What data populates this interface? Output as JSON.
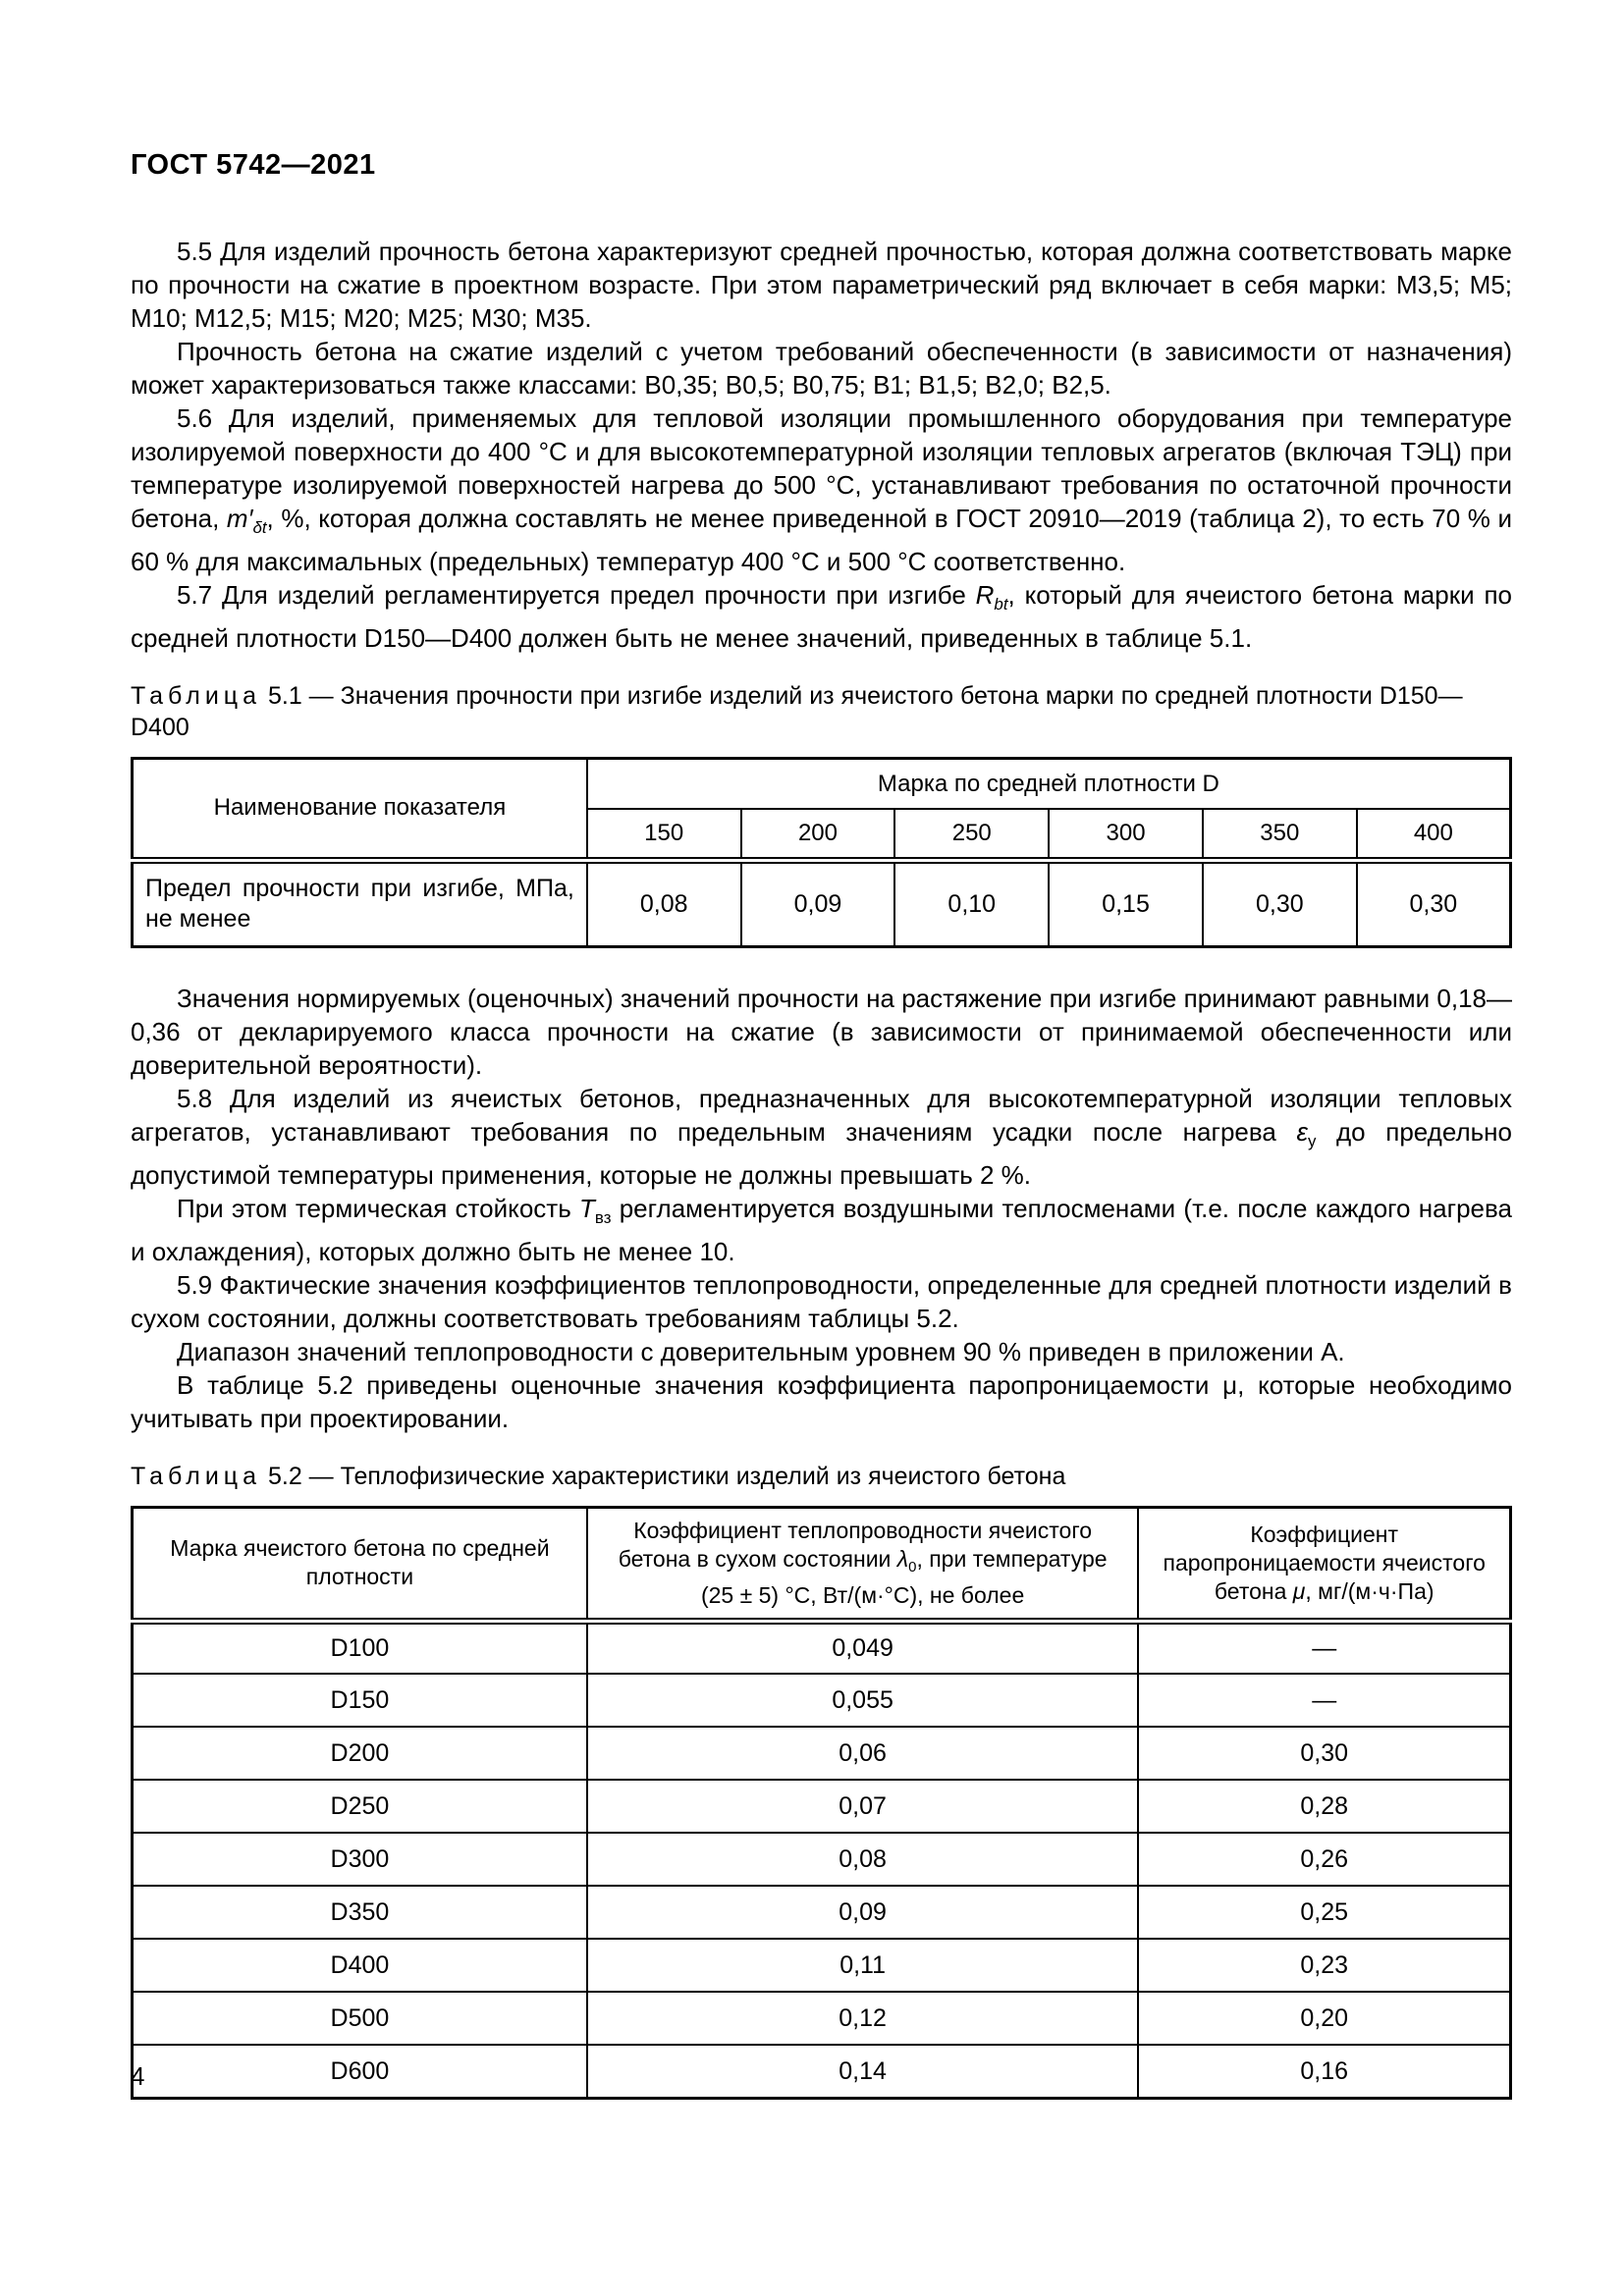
{
  "header": {
    "title": "ГОСТ 5742—2021"
  },
  "footer": {
    "page_number": "4"
  },
  "paragraphs": {
    "p55": "5.5 Для изделий прочность бетона характеризуют средней прочностью, которая должна соответствовать марке по прочности на сжатие в проектном возрасте. При этом параметрический ряд включает в себя марки: М3,5; М5; М10; М12,5; М15; М20; М25; М30; М35.",
    "p_classes": "Прочность бетона на сжатие изделий с учетом требований обеспеченности (в зависимости от назначения) может характеризоваться также классами: В0,35; В0,5; В0,75; В1; В1,5; В2,0; В2,5.",
    "p56_runs": [
      {
        "t": "5.6 Для изделий, применяемых для тепловой изоляции промышленного оборудования при температуре изолируемой поверхности до 400 °С и для высокотемпературной изоляции тепловых агрегатов (включая ТЭЦ) при температуре изолируемой поверхностей нагрева до 500 °С, устанавливают требования по остаточной прочности бетона, "
      },
      {
        "t": "m′",
        "i": true
      },
      {
        "t": "δt",
        "i": true,
        "sub": true
      },
      {
        "t": ", %, которая должна составлять не менее приведенной в ГОСТ 20910—2019 (таблица 2), то есть 70 % и 60 % для максимальных (предельных) температур 400 °С и 500 °С соответственно."
      }
    ],
    "p57_runs": [
      {
        "t": "5.7 Для изделий регламентируется предел прочности при изгибе "
      },
      {
        "t": "R",
        "i": true
      },
      {
        "t": "bt",
        "i": true,
        "sub": true
      },
      {
        "t": ", который для ячеистого бетона марки по средней плотности D150—D400 должен быть не менее значений, приведенных в таблице 5.1."
      }
    ],
    "p_norm": "Значения нормируемых (оценочных) значений прочности на растяжение при изгибе принимают равными 0,18—0,36 от декларируемого класса прочности на сжатие (в зависимости от принимаемой обеспеченности или доверительной вероятности).",
    "p58_runs": [
      {
        "t": "5.8 Для изделий из ячеистых бетонов, предназначенных для высокотемпературной изоляции тепловых агрегатов, устанавливают требования по предельным значениям усадки после нагрева "
      },
      {
        "t": "ε",
        "i": true
      },
      {
        "t": "у",
        "sub": true
      },
      {
        "t": " до предельно допустимой температуры применения, которые не должны превышать 2 %."
      }
    ],
    "p58b_runs": [
      {
        "t": "При этом термическая стойкость "
      },
      {
        "t": "Т",
        "i": true
      },
      {
        "t": "вз",
        "sub": true
      },
      {
        "t": " регламентируется воздушными теплосменами (т.е. после каждого нагрева и охлаждения), которых должно быть не менее 10."
      }
    ],
    "p59": "5.9 Фактические значения коэффициентов теплопроводности, определенные для средней плотности изделий в сухом состоянии, должны соответствовать требованиям таблицы 5.2.",
    "p_range": "Диапазон значений теплопроводности с доверительным уровнем 90 % приведен в приложении А.",
    "p_t52": "В таблице 5.2 приведены оценочные значения коэффициента паропроницаемости μ, которые необходимо учитывать при проектировании."
  },
  "table51": {
    "caption_runs": [
      {
        "t": "Таблица",
        "sp": true
      },
      {
        "t": " 5.1 — Значения прочности при изгибе изделий из ячеистого бетона марки по средней плотности D150—D400"
      }
    ],
    "name_header": "Наименование показателя",
    "group_header": "Марка по средней плотности D",
    "density_cols": [
      "150",
      "200",
      "250",
      "300",
      "350",
      "400"
    ],
    "row_label": "Предел прочности при изгибе, МПа, не менее",
    "values": [
      "0,08",
      "0,09",
      "0,10",
      "0,15",
      "0,30",
      "0,30"
    ]
  },
  "table52": {
    "caption_runs": [
      {
        "t": "Таблица",
        "sp": true
      },
      {
        "t": " 5.2 — Теплофизические характеристики изделий из ячеистого бетона"
      }
    ],
    "header_col1": "Марка ячеистого бетона по средней плотности",
    "header_col2_runs": [
      {
        "t": "Коэффициент теплопроводности ячеистого бетона в сухом состоянии "
      },
      {
        "t": "λ",
        "i": true
      },
      {
        "t": "0",
        "sub": true
      },
      {
        "t": ", при температуре (25 ± 5) °С, Вт/(м·°С), не более"
      }
    ],
    "header_col3_runs": [
      {
        "t": "Коэффициент паропроницаемости ячеистого бетона "
      },
      {
        "t": "μ",
        "i": true
      },
      {
        "t": ", мг/(м·ч·Па)"
      }
    ],
    "rows": [
      [
        "D100",
        "0,049",
        "—"
      ],
      [
        "D150",
        "0,055",
        "—"
      ],
      [
        "D200",
        "0,06",
        "0,30"
      ],
      [
        "D250",
        "0,07",
        "0,28"
      ],
      [
        "D300",
        "0,08",
        "0,26"
      ],
      [
        "D350",
        "0,09",
        "0,25"
      ],
      [
        "D400",
        "0,11",
        "0,23"
      ],
      [
        "D500",
        "0,12",
        "0,20"
      ],
      [
        "D600",
        "0,14",
        "0,16"
      ]
    ]
  }
}
